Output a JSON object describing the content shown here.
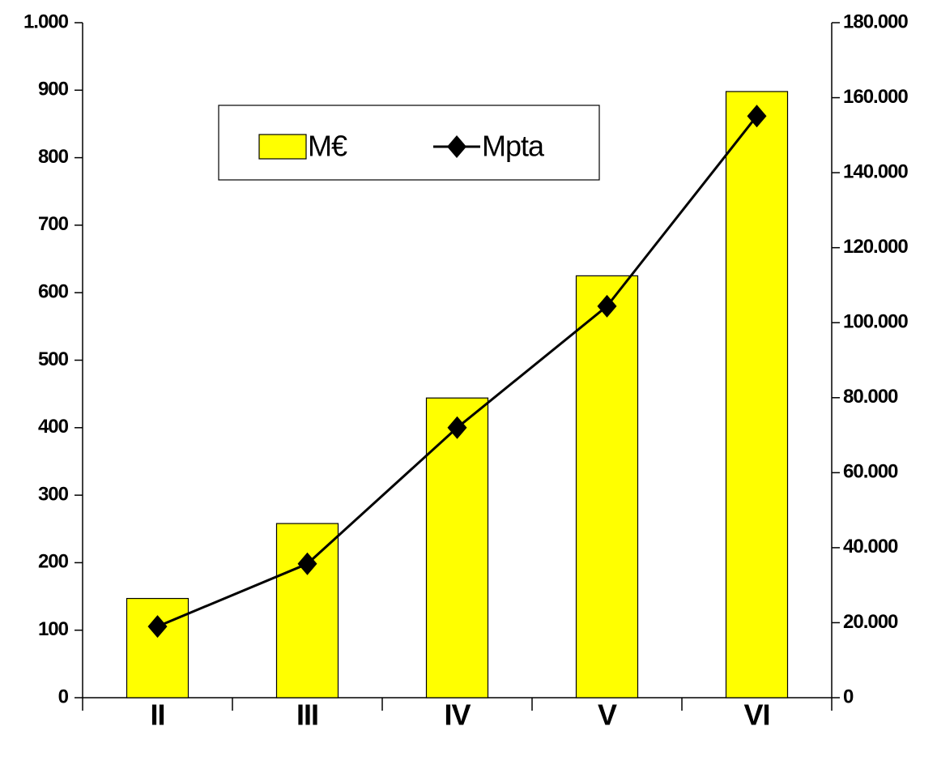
{
  "chart_data": {
    "type": "bar",
    "categories": [
      "II",
      "III",
      "IV",
      "V",
      "VI"
    ],
    "series": [
      {
        "name": "M€",
        "type": "bar",
        "color": "#ffff00",
        "values": [
          147,
          258,
          444,
          625,
          898
        ]
      },
      {
        "name": "Mpta",
        "type": "line",
        "axis": "y2",
        "color": "#000000",
        "values": [
          19000,
          35700,
          72000,
          104400,
          155100
        ]
      }
    ],
    "ylim": [
      0,
      1000
    ],
    "yticks": [
      0,
      100,
      200,
      300,
      400,
      500,
      600,
      700,
      800,
      900,
      {
        "value": 1000,
        "label": "1.000"
      }
    ],
    "y2lim": [
      0,
      180000
    ],
    "y2ticks": [
      0,
      {
        "value": 20000,
        "label": "20.000"
      },
      {
        "value": 40000,
        "label": "40.000"
      },
      {
        "value": 60000,
        "label": "60.000"
      },
      {
        "value": 80000,
        "label": "80.000"
      },
      {
        "value": 100000,
        "label": "100.000"
      },
      {
        "value": 120000,
        "label": "120.000"
      },
      {
        "value": 140000,
        "label": "140.000"
      },
      {
        "value": 160000,
        "label": "160.000"
      },
      {
        "value": 180000,
        "label": "180.000"
      }
    ],
    "grid": false
  }
}
